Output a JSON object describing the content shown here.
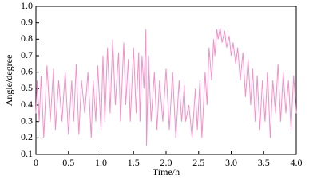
{
  "chart_data": {
    "type": "line",
    "xlabel": "Time/h",
    "ylabel": "Angle/degree",
    "x": [
      0,
      0.02,
      0.05,
      0.08,
      0.12,
      0.17,
      0.22,
      0.27,
      0.3,
      0.35,
      0.4,
      0.45,
      0.5,
      0.55,
      0.58,
      0.62,
      0.66,
      0.7,
      0.75,
      0.8,
      0.85,
      0.88,
      0.92,
      0.95,
      1.0,
      1.03,
      1.06,
      1.1,
      1.14,
      1.18,
      1.22,
      1.27,
      1.3,
      1.35,
      1.38,
      1.42,
      1.45,
      1.5,
      1.54,
      1.58,
      1.6,
      1.63,
      1.66,
      1.69,
      1.7,
      1.73,
      1.77,
      1.82,
      1.86,
      1.9,
      1.95,
      2.0,
      2.05,
      2.1,
      2.15,
      2.2,
      2.24,
      2.28,
      2.3,
      2.35,
      2.4,
      2.45,
      2.48,
      2.52,
      2.55,
      2.6,
      2.63,
      2.66,
      2.7,
      2.73,
      2.75,
      2.78,
      2.8,
      2.83,
      2.86,
      2.9,
      2.93,
      2.97,
      3.0,
      3.03,
      3.07,
      3.1,
      3.14,
      3.18,
      3.22,
      3.26,
      3.3,
      3.33,
      3.37,
      3.4,
      3.44,
      3.48,
      3.52,
      3.56,
      3.6,
      3.64,
      3.68,
      3.72,
      3.76,
      3.8,
      3.84,
      3.88,
      3.92,
      3.96,
      4.0
    ],
    "series": [
      {
        "color": "#f48fc8",
        "values": [
          0.35,
          0.55,
          0.3,
          0.58,
          0.2,
          0.64,
          0.3,
          0.62,
          0.25,
          0.55,
          0.3,
          0.6,
          0.22,
          0.55,
          0.3,
          0.65,
          0.22,
          0.55,
          0.35,
          0.6,
          0.2,
          0.55,
          0.3,
          0.64,
          0.25,
          0.7,
          0.3,
          0.75,
          0.35,
          0.8,
          0.4,
          0.72,
          0.3,
          0.78,
          0.4,
          0.68,
          0.3,
          0.75,
          0.35,
          0.72,
          0.3,
          0.7,
          0.5,
          0.86,
          0.15,
          0.7,
          0.3,
          0.6,
          0.25,
          0.55,
          0.3,
          0.62,
          0.25,
          0.6,
          0.2,
          0.55,
          0.3,
          0.52,
          0.3,
          0.4,
          0.2,
          0.5,
          0.25,
          0.55,
          0.2,
          0.6,
          0.4,
          0.75,
          0.55,
          0.8,
          0.7,
          0.86,
          0.8,
          0.87,
          0.78,
          0.85,
          0.75,
          0.82,
          0.7,
          0.78,
          0.65,
          0.75,
          0.55,
          0.72,
          0.45,
          0.68,
          0.4,
          0.62,
          0.3,
          0.58,
          0.25,
          0.55,
          0.3,
          0.6,
          0.2,
          0.55,
          0.35,
          0.65,
          0.3,
          0.6,
          0.35,
          0.55,
          0.25,
          0.58,
          0.35
        ]
      }
    ],
    "xlim": [
      0,
      4
    ],
    "xticks": [
      0,
      0.5,
      {
        "value": 1,
        "label": "1.0"
      },
      1.5,
      {
        "value": 2,
        "label": "2.0"
      },
      2.5,
      {
        "value": 3,
        "label": "3.0"
      },
      3.5,
      {
        "value": 4,
        "label": "4.0"
      }
    ],
    "ylim": [
      0.1,
      1
    ],
    "yticks": [
      0.1,
      0.2,
      0.3,
      0.4,
      0.5,
      0.6,
      0.7,
      0.8,
      0.9,
      {
        "value": 1,
        "label": "1.0"
      }
    ]
  }
}
